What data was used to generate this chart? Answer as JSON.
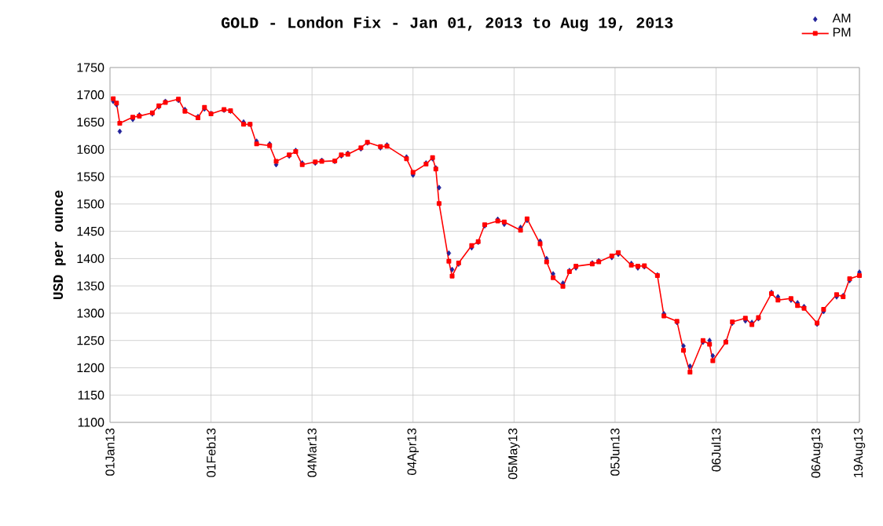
{
  "chart_data": {
    "type": "line",
    "title": "GOLD - London Fix - Jan 01, 2013 to Aug 19, 2013",
    "ylabel": "USD per ounce",
    "x": [
      "2013-01-02",
      "2013-01-03",
      "2013-01-04",
      "2013-01-08",
      "2013-01-10",
      "2013-01-14",
      "2013-01-16",
      "2013-01-18",
      "2013-01-22",
      "2013-01-24",
      "2013-01-28",
      "2013-01-30",
      "2013-02-01",
      "2013-02-05",
      "2013-02-07",
      "2013-02-11",
      "2013-02-13",
      "2013-02-15",
      "2013-02-19",
      "2013-02-21",
      "2013-02-25",
      "2013-02-27",
      "2013-03-01",
      "2013-03-05",
      "2013-03-07",
      "2013-03-11",
      "2013-03-13",
      "2013-03-15",
      "2013-03-19",
      "2013-03-21",
      "2013-03-25",
      "2013-03-27",
      "2013-04-02",
      "2013-04-04",
      "2013-04-08",
      "2013-04-10",
      "2013-04-11",
      "2013-04-12",
      "2013-04-15",
      "2013-04-16",
      "2013-04-18",
      "2013-04-22",
      "2013-04-24",
      "2013-04-26",
      "2013-04-30",
      "2013-05-02",
      "2013-05-07",
      "2013-05-09",
      "2013-05-13",
      "2013-05-15",
      "2013-05-17",
      "2013-05-20",
      "2013-05-22",
      "2013-05-24",
      "2013-05-29",
      "2013-05-31",
      "2013-06-04",
      "2013-06-06",
      "2013-06-10",
      "2013-06-12",
      "2013-06-14",
      "2013-06-18",
      "2013-06-20",
      "2013-06-24",
      "2013-06-26",
      "2013-06-28",
      "2013-07-02",
      "2013-07-04",
      "2013-07-05",
      "2013-07-09",
      "2013-07-11",
      "2013-07-15",
      "2013-07-17",
      "2013-07-19",
      "2013-07-23",
      "2013-07-25",
      "2013-07-29",
      "2013-07-31",
      "2013-08-02",
      "2013-08-06",
      "2013-08-08",
      "2013-08-12",
      "2013-08-14",
      "2013-08-16",
      "2013-08-19"
    ],
    "series": [
      {
        "name": "AM",
        "type": "scatter",
        "marker": "diamond",
        "color": "#22229a",
        "values": [
          1688,
          1682,
          1633,
          1655,
          1663,
          1665,
          1678,
          1688,
          1690,
          1673,
          1660,
          1674,
          1666,
          1672,
          1670,
          1650,
          1646,
          1615,
          1610,
          1572,
          1588,
          1598,
          1575,
          1575,
          1580,
          1578,
          1588,
          1593,
          1601,
          1612,
          1603,
          1608,
          1586,
          1553,
          1575,
          1583,
          1566,
          1530,
          1410,
          1380,
          1390,
          1420,
          1430,
          1460,
          1472,
          1463,
          1457,
          1470,
          1432,
          1400,
          1372,
          1355,
          1378,
          1383,
          1392,
          1396,
          1402,
          1408,
          1391,
          1383,
          1385,
          1370,
          1299,
          1283,
          1240,
          1203,
          1247,
          1250,
          1222,
          1248,
          1282,
          1286,
          1283,
          1290,
          1338,
          1330,
          1324,
          1319,
          1312,
          1280,
          1303,
          1330,
          1332,
          1360,
          1375
        ]
      },
      {
        "name": "PM",
        "marker": "square",
        "color": "#ff0000",
        "values": [
          1693,
          1685,
          1648,
          1659,
          1661,
          1667,
          1680,
          1686,
          1692,
          1670,
          1658,
          1677,
          1665,
          1673,
          1671,
          1646,
          1646,
          1610,
          1607,
          1578,
          1590,
          1596,
          1572,
          1577,
          1578,
          1579,
          1590,
          1591,
          1603,
          1613,
          1605,
          1606,
          1583,
          1558,
          1573,
          1585,
          1564,
          1501,
          1395,
          1368,
          1392,
          1424,
          1431,
          1462,
          1469,
          1467,
          1452,
          1473,
          1427,
          1394,
          1365,
          1349,
          1376,
          1386,
          1390,
          1394,
          1405,
          1411,
          1388,
          1386,
          1387,
          1369,
          1295,
          1285,
          1232,
          1192,
          1250,
          1243,
          1213,
          1247,
          1284,
          1291,
          1279,
          1292,
          1336,
          1324,
          1327,
          1314,
          1309,
          1282,
          1307,
          1334,
          1330,
          1363,
          1369
        ]
      }
    ],
    "xlim": [
      "2013-01-01",
      "2013-08-19"
    ],
    "xticks": [
      {
        "value": "2013-01-01",
        "label": "01Jan13"
      },
      {
        "value": "2013-02-01",
        "label": "01Feb13"
      },
      {
        "value": "2013-03-04",
        "label": "04Mar13"
      },
      {
        "value": "2013-04-04",
        "label": "04Apr13"
      },
      {
        "value": "2013-05-05",
        "label": "05May13"
      },
      {
        "value": "2013-06-05",
        "label": "05Jun13"
      },
      {
        "value": "2013-07-06",
        "label": "06Jul13"
      },
      {
        "value": "2013-08-06",
        "label": "06Aug13"
      },
      {
        "value": "2013-08-19",
        "label": "19Aug13"
      }
    ],
    "ylim": [
      1100,
      1750
    ],
    "yticks": [
      1100,
      1150,
      1200,
      1250,
      1300,
      1350,
      1400,
      1450,
      1500,
      1550,
      1600,
      1650,
      1700,
      1750
    ],
    "grid": true,
    "legend": "top right"
  }
}
